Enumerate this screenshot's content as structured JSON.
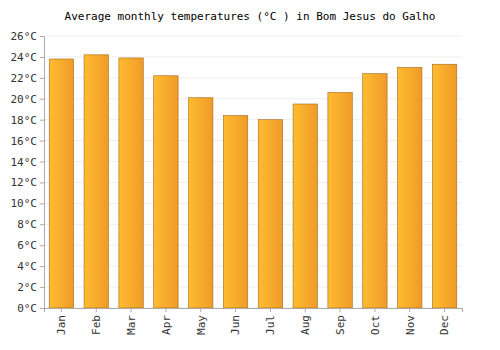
{
  "chart_data": {
    "type": "bar",
    "title": "Average monthly temperatures (°C ) in Bom Jesus do Galho",
    "categories": [
      "Jan",
      "Feb",
      "Mar",
      "Apr",
      "May",
      "Jun",
      "Jul",
      "Aug",
      "Sep",
      "Oct",
      "Nov",
      "Dec"
    ],
    "values": [
      23.8,
      24.2,
      23.9,
      22.2,
      20.1,
      18.4,
      18.0,
      19.5,
      20.6,
      22.4,
      23.0,
      23.3
    ],
    "color": "#fca32a",
    "ylim": [
      0,
      26
    ],
    "yticks": [
      {
        "value": 0,
        "label": "0°C"
      },
      {
        "value": 2,
        "label": "2°C"
      },
      {
        "value": 4,
        "label": "4°C"
      },
      {
        "value": 6,
        "label": "6°C"
      },
      {
        "value": 8,
        "label": "8°C"
      },
      {
        "value": 10,
        "label": "10°C"
      },
      {
        "value": 12,
        "label": "12°C"
      },
      {
        "value": 14,
        "label": "14°C"
      },
      {
        "value": 16,
        "label": "16°C"
      },
      {
        "value": 18,
        "label": "18°C"
      },
      {
        "value": 20,
        "label": "20°C"
      },
      {
        "value": 22,
        "label": "22°C"
      },
      {
        "value": 24,
        "label": "24°C"
      },
      {
        "value": 26,
        "label": "26°C"
      }
    ],
    "grid": true
  }
}
